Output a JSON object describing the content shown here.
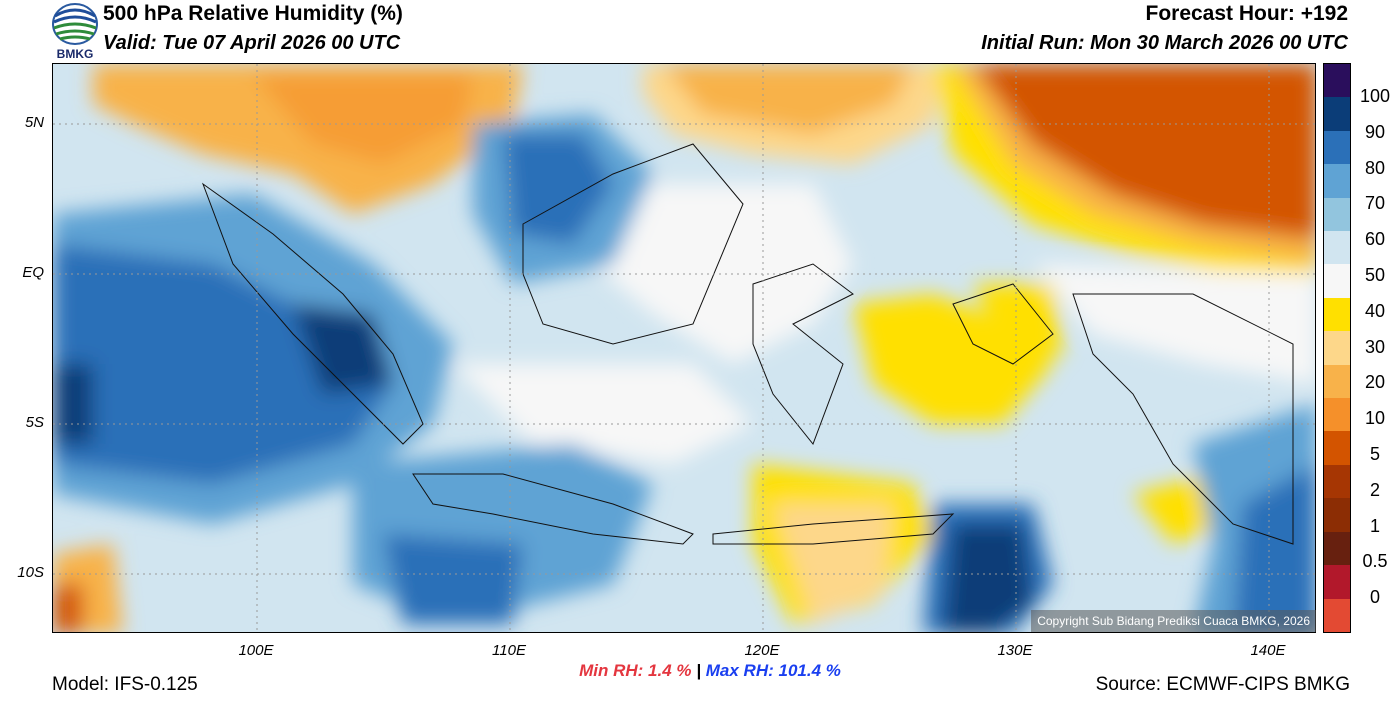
{
  "header": {
    "title": "500 hPa Relative Humidity (%)",
    "valid": "Valid: Tue 07 April 2026 00 UTC",
    "forecast_hour": "Forecast Hour: +192",
    "initial_run": "Initial Run: Mon 30 March 2026 00 UTC",
    "logo_text": "BMKG"
  },
  "map": {
    "lat_labels": [
      "5N",
      "EQ",
      "5S",
      "10S"
    ],
    "lon_labels": [
      "100E",
      "110E",
      "120E",
      "130E",
      "140E"
    ],
    "copyright": "Copyright Sub Bidang Prediksi Cuaca BMKG, 2026"
  },
  "colorbar": {
    "labels": [
      "100",
      "90",
      "80",
      "70",
      "60",
      "50",
      "40",
      "30",
      "20",
      "10",
      "5",
      "2",
      "1",
      "0.5",
      "0"
    ],
    "colors": [
      "#e34a33",
      "#b2182b",
      "#67200f",
      "#8c2d04",
      "#a63603",
      "#d35400",
      "#f5902a",
      "#f8b24a",
      "#fdd78a",
      "#ffe000",
      "#f7f7f7",
      "#d1e5f0",
      "#92c5de",
      "#5fa3d4",
      "#2b70b8",
      "#0b3d78",
      "#2a0e5c"
    ]
  },
  "stats": {
    "min_label": "Min RH:",
    "min_value": "1.4 %",
    "separator": "|",
    "max_label": "Max RH:",
    "max_value": "101.4 %"
  },
  "footer": {
    "model": "Model: IFS-0.125",
    "source": "Source: ECMWF-CIPS BMKG"
  }
}
